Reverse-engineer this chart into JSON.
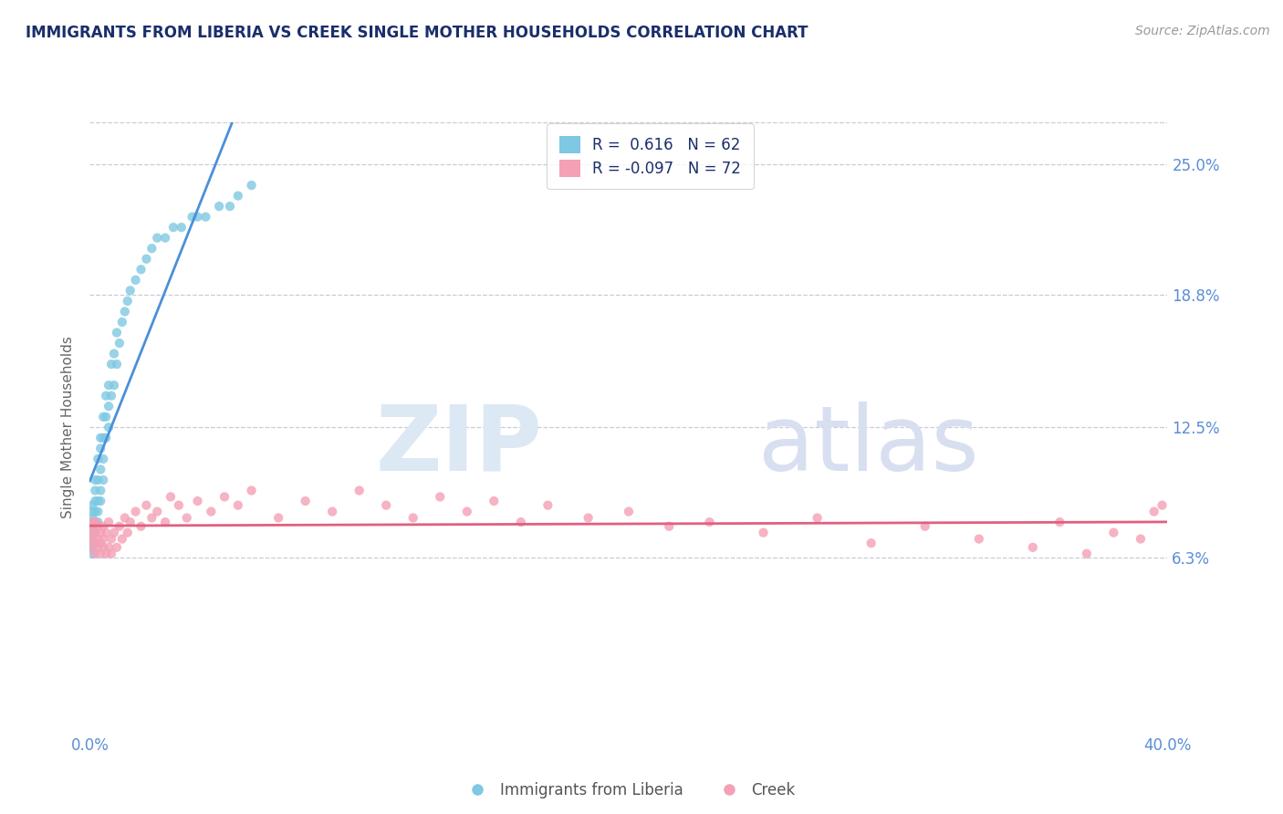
{
  "title": "IMMIGRANTS FROM LIBERIA VS CREEK SINGLE MOTHER HOUSEHOLDS CORRELATION CHART",
  "source": "Source: ZipAtlas.com",
  "ylabel": "Single Mother Households",
  "xlim": [
    0.0,
    0.4
  ],
  "ylim": [
    -0.02,
    0.27
  ],
  "yticks": [
    0.063,
    0.125,
    0.188,
    0.25
  ],
  "ytick_labels": [
    "6.3%",
    "12.5%",
    "18.8%",
    "25.0%"
  ],
  "xticks": [
    0.0,
    0.4
  ],
  "xtick_labels": [
    "0.0%",
    "40.0%"
  ],
  "r_liberia": 0.616,
  "n_liberia": 62,
  "r_creek": -0.097,
  "n_creek": 72,
  "blue_color": "#7ec8e3",
  "pink_color": "#f4a0b5",
  "blue_line_color": "#4a90d9",
  "pink_line_color": "#e06080",
  "title_color": "#1a2e6b",
  "tick_color": "#5b8dd9",
  "legend_label_liberia": "Immigrants from Liberia",
  "legend_label_creek": "Creek",
  "liberia_x": [
    0.0,
    0.0,
    0.001,
    0.001,
    0.001,
    0.001,
    0.001,
    0.001,
    0.001,
    0.001,
    0.002,
    0.002,
    0.002,
    0.002,
    0.002,
    0.002,
    0.003,
    0.003,
    0.003,
    0.003,
    0.003,
    0.004,
    0.004,
    0.004,
    0.004,
    0.004,
    0.005,
    0.005,
    0.005,
    0.005,
    0.006,
    0.006,
    0.006,
    0.007,
    0.007,
    0.007,
    0.008,
    0.008,
    0.009,
    0.009,
    0.01,
    0.01,
    0.011,
    0.012,
    0.013,
    0.014,
    0.015,
    0.017,
    0.019,
    0.021,
    0.023,
    0.025,
    0.028,
    0.031,
    0.034,
    0.038,
    0.04,
    0.043,
    0.048,
    0.052,
    0.055,
    0.06
  ],
  "liberia_y": [
    0.07,
    0.075,
    0.065,
    0.068,
    0.072,
    0.078,
    0.08,
    0.082,
    0.085,
    0.088,
    0.075,
    0.08,
    0.085,
    0.09,
    0.095,
    0.1,
    0.08,
    0.085,
    0.09,
    0.1,
    0.11,
    0.09,
    0.095,
    0.105,
    0.115,
    0.12,
    0.1,
    0.11,
    0.12,
    0.13,
    0.12,
    0.13,
    0.14,
    0.125,
    0.135,
    0.145,
    0.14,
    0.155,
    0.145,
    0.16,
    0.155,
    0.17,
    0.165,
    0.175,
    0.18,
    0.185,
    0.19,
    0.195,
    0.2,
    0.205,
    0.21,
    0.215,
    0.215,
    0.22,
    0.22,
    0.225,
    0.225,
    0.225,
    0.23,
    0.23,
    0.235,
    0.24
  ],
  "creek_x": [
    0.0,
    0.001,
    0.001,
    0.001,
    0.001,
    0.002,
    0.002,
    0.002,
    0.002,
    0.003,
    0.003,
    0.003,
    0.004,
    0.004,
    0.004,
    0.005,
    0.005,
    0.005,
    0.006,
    0.006,
    0.007,
    0.007,
    0.008,
    0.008,
    0.009,
    0.01,
    0.011,
    0.012,
    0.013,
    0.014,
    0.015,
    0.017,
    0.019,
    0.021,
    0.023,
    0.025,
    0.028,
    0.03,
    0.033,
    0.036,
    0.04,
    0.045,
    0.05,
    0.055,
    0.06,
    0.07,
    0.08,
    0.09,
    0.1,
    0.11,
    0.12,
    0.13,
    0.14,
    0.15,
    0.16,
    0.17,
    0.185,
    0.2,
    0.215,
    0.23,
    0.25,
    0.27,
    0.29,
    0.31,
    0.33,
    0.35,
    0.36,
    0.37,
    0.38,
    0.39,
    0.395,
    0.398
  ],
  "creek_y": [
    0.068,
    0.072,
    0.075,
    0.078,
    0.08,
    0.065,
    0.07,
    0.075,
    0.08,
    0.068,
    0.072,
    0.078,
    0.065,
    0.07,
    0.075,
    0.068,
    0.072,
    0.078,
    0.065,
    0.075,
    0.068,
    0.08,
    0.065,
    0.072,
    0.075,
    0.068,
    0.078,
    0.072,
    0.082,
    0.075,
    0.08,
    0.085,
    0.078,
    0.088,
    0.082,
    0.085,
    0.08,
    0.092,
    0.088,
    0.082,
    0.09,
    0.085,
    0.092,
    0.088,
    0.095,
    0.082,
    0.09,
    0.085,
    0.095,
    0.088,
    0.082,
    0.092,
    0.085,
    0.09,
    0.08,
    0.088,
    0.082,
    0.085,
    0.078,
    0.08,
    0.075,
    0.082,
    0.07,
    0.078,
    0.072,
    0.068,
    0.08,
    0.065,
    0.075,
    0.072,
    0.085,
    0.088
  ]
}
